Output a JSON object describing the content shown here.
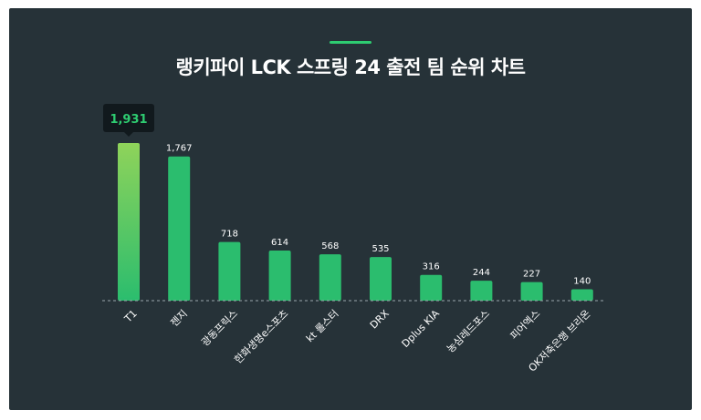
{
  "accent_color": "#2ecc71",
  "chart_data": {
    "type": "bar",
    "title": "랭키파이 LCK 스프링 24 출전 팀 순위 차트",
    "categories": [
      "T1",
      "젠지",
      "광동프릭스",
      "한화생명e스포츠",
      "kt 롤스터",
      "DRX",
      "Dplus KIA",
      "농심레드포스",
      "피어엑스",
      "OK저축은행 브리온"
    ],
    "values": [
      1931,
      1767,
      718,
      614,
      568,
      535,
      316,
      244,
      227,
      140
    ],
    "value_labels": [
      "1,931",
      "1,767",
      "718",
      "614",
      "568",
      "535",
      "316",
      "244",
      "227",
      "140"
    ],
    "highlight": {
      "index": 0,
      "label": "1,931"
    },
    "ylim": [
      0,
      1931
    ],
    "grid": false,
    "legend": "none",
    "colors": {
      "bar": "#2bbd6e",
      "bar_top": "#8fd35a",
      "highlight_text": "#2ecc71",
      "label": "#ffffff",
      "baseline": "#9aa5ab"
    }
  }
}
